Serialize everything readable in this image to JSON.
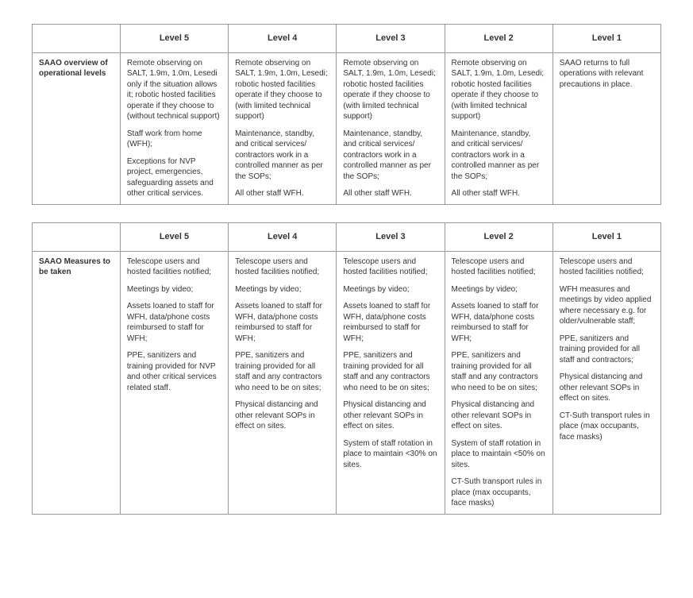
{
  "colors": {
    "text": "#333333",
    "border": "#999999",
    "background": "#ffffff"
  },
  "levels": [
    "Level 5",
    "Level 4",
    "Level 3",
    "Level 2",
    "Level 1"
  ],
  "table1": {
    "rowLabel": "SAAO overview of operational levels",
    "cells": [
      [
        "Remote observing on SALT, 1.9m, 1.0m, Lesedi only if the situation allows it; robotic hosted facilities operate if they choose to (without technical support)",
        "Staff work from home (WFH);",
        "Exceptions for NVP project, emergencies, safeguarding assets and other critical services."
      ],
      [
        "Remote observing on SALT, 1.9m, 1.0m, Lesedi; robotic hosted facilities operate if they choose to (with limited technical support)",
        "Maintenance, standby, and critical services/ contractors work in a controlled manner as per the SOPs;",
        "All other staff WFH."
      ],
      [
        "Remote observing on SALT, 1.9m, 1.0m, Lesedi; robotic hosted facilities operate if they choose to (with limited technical support)",
        "Maintenance, standby, and critical services/ contractors work in a controlled manner as per the SOPs;",
        "All other staff WFH."
      ],
      [
        "Remote observing on SALT, 1.9m, 1.0m, Lesedi; robotic hosted facilities operate if they choose to (with limited technical support)",
        "Maintenance, standby, and critical services/ contractors work in a controlled manner as per the SOPs;",
        "All other staff WFH."
      ],
      [
        "SAAO returns to full operations with relevant precautions in place."
      ]
    ]
  },
  "table2": {
    "rowLabel": "SAAO Measures to be taken",
    "cells": [
      [
        "Telescope users and hosted facilities notified;",
        "Meetings by video;",
        "Assets loaned to staff for WFH, data/phone costs reimbursed to staff for WFH;",
        "PPE, sanitizers and training provided for NVP and other critical services related staff."
      ],
      [
        "Telescope users and hosted facilities notified;",
        "Meetings by video;",
        "Assets loaned to staff for WFH, data/phone costs reimbursed to staff for WFH;",
        "PPE, sanitizers and training provided for all staff and any contractors who need to be on sites;",
        "Physical distancing and other relevant SOPs in effect on sites."
      ],
      [
        "Telescope users and hosted facilities notified;",
        "Meetings by video;",
        "Assets loaned to staff for WFH, data/phone costs reimbursed to staff for WFH;",
        "PPE, sanitizers and training provided for all staff and any contractors who need to be on sites;",
        "Physical distancing and other relevant SOPs in effect on sites.",
        "System of staff rotation in place to maintain <30% on sites."
      ],
      [
        "Telescope users and hosted facilities notified;",
        "Meetings by video;",
        "Assets loaned to staff for WFH, data/phone costs reimbursed to staff for WFH;",
        "PPE, sanitizers and training provided for all staff and any contractors who need to be on sites;",
        "Physical distancing and other relevant SOPs in effect on sites.",
        "System of staff rotation in place to maintain <50% on sites.",
        "CT-Suth transport rules in place (max occupants, face masks)"
      ],
      [
        "Telescope users and hosted facilities notified;",
        "WFH measures and meetings by video applied where necessary e.g. for older/vulnerable staff;",
        "PPE, sanitizers and training provided for all staff and contractors;",
        "Physical distancing and other relevant SOPs in effect on sites.",
        "CT-Suth transport rules in place (max occupants, face masks)"
      ]
    ]
  }
}
